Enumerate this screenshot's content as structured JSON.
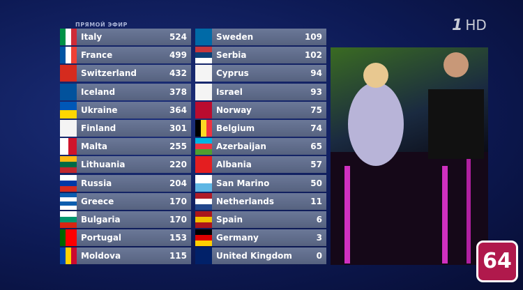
{
  "header": {
    "live_label": "ПРЯМОЙ ЭФИР",
    "channel_number": "1",
    "channel_suffix": "HD",
    "badge": "64"
  },
  "scoreboard": {
    "left": [
      {
        "country": "Italy",
        "points": 524
      },
      {
        "country": "France",
        "points": 499
      },
      {
        "country": "Switzerland",
        "points": 432
      },
      {
        "country": "Iceland",
        "points": 378
      },
      {
        "country": "Ukraine",
        "points": 364
      },
      {
        "country": "Finland",
        "points": 301
      },
      {
        "country": "Malta",
        "points": 255
      },
      {
        "country": "Lithuania",
        "points": 220
      },
      {
        "country": "Russia",
        "points": 204
      },
      {
        "country": "Greece",
        "points": 170
      },
      {
        "country": "Bulgaria",
        "points": 170
      },
      {
        "country": "Portugal",
        "points": 153
      },
      {
        "country": "Moldova",
        "points": 115
      }
    ],
    "right": [
      {
        "country": "Sweden",
        "points": 109
      },
      {
        "country": "Serbia",
        "points": 102
      },
      {
        "country": "Cyprus",
        "points": 94
      },
      {
        "country": "Israel",
        "points": 93
      },
      {
        "country": "Norway",
        "points": 75
      },
      {
        "country": "Belgium",
        "points": 74
      },
      {
        "country": "Azerbaijan",
        "points": 65
      },
      {
        "country": "Albania",
        "points": 57
      },
      {
        "country": "San Marino",
        "points": 50
      },
      {
        "country": "Netherlands",
        "points": 11
      },
      {
        "country": "Spain",
        "points": 6
      },
      {
        "country": "Germany",
        "points": 3
      },
      {
        "country": "United Kingdom",
        "points": 0
      }
    ]
  }
}
